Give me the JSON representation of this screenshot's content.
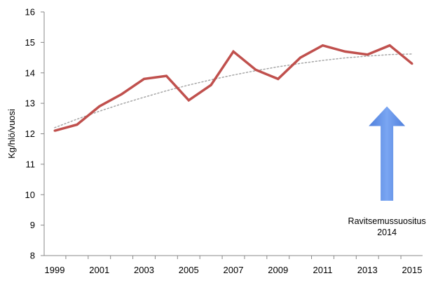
{
  "chart_data": {
    "type": "line",
    "title": "",
    "xlabel": "",
    "ylabel": "Kg/hlö/vuosi",
    "ylim": [
      8,
      16
    ],
    "xlim": [
      1999,
      2015
    ],
    "yticks": [
      8,
      9,
      10,
      11,
      12,
      13,
      14,
      15,
      16
    ],
    "xticks": [
      1999,
      2001,
      2003,
      2005,
      2007,
      2009,
      2011,
      2013,
      2015
    ],
    "grid": false,
    "legend": "none",
    "series": [
      {
        "x": [
          1999,
          2000,
          2001,
          2002,
          2003,
          2004,
          2005,
          2006,
          2007,
          2008,
          2009,
          2010,
          2011,
          2012,
          2013,
          2014,
          2015
        ],
        "values": [
          12.1,
          12.3,
          12.9,
          13.3,
          13.8,
          13.9,
          13.1,
          13.6,
          14.7,
          14.1,
          13.8,
          14.5,
          14.9,
          14.7,
          14.6,
          14.9,
          14.3
        ],
        "color": "#c0504d"
      }
    ],
    "trendline": {
      "style": "dotted",
      "color": "#a6a6a6",
      "x": [
        1999,
        2000,
        2001,
        2002,
        2003,
        2004,
        2005,
        2006,
        2007,
        2008,
        2009,
        2010,
        2011,
        2012,
        2013,
        2014,
        2015
      ],
      "values": [
        12.2,
        12.48,
        12.74,
        12.98,
        13.2,
        13.41,
        13.6,
        13.77,
        13.93,
        14.07,
        14.2,
        14.31,
        14.41,
        14.49,
        14.55,
        14.6,
        14.62
      ]
    },
    "annotations": [
      {
        "text_lines": [
          "Ravitsemussuositus",
          "2014"
        ],
        "arrow_color": "#6495ed",
        "arrow_x": 2014,
        "arrow_from_y": 9.8,
        "arrow_to_y": 12.9
      }
    ]
  }
}
